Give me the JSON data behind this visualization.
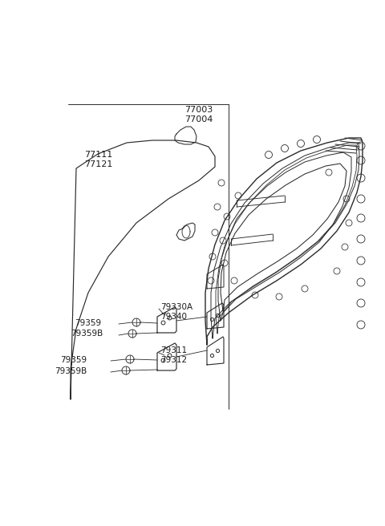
{
  "bg_color": "#ffffff",
  "line_color": "#2a2a2a",
  "text_color": "#1a1a1a",
  "labels": {
    "77003_77004": "77003\n77004",
    "77111_77121": "77111\n77121",
    "79330A_79340": "79330A\n79340",
    "79359_upper": "79359",
    "79359B_upper": "79359B",
    "79311_79312": "79311\n79312",
    "79359_lower": "79359",
    "79359B_lower": "79359B"
  }
}
